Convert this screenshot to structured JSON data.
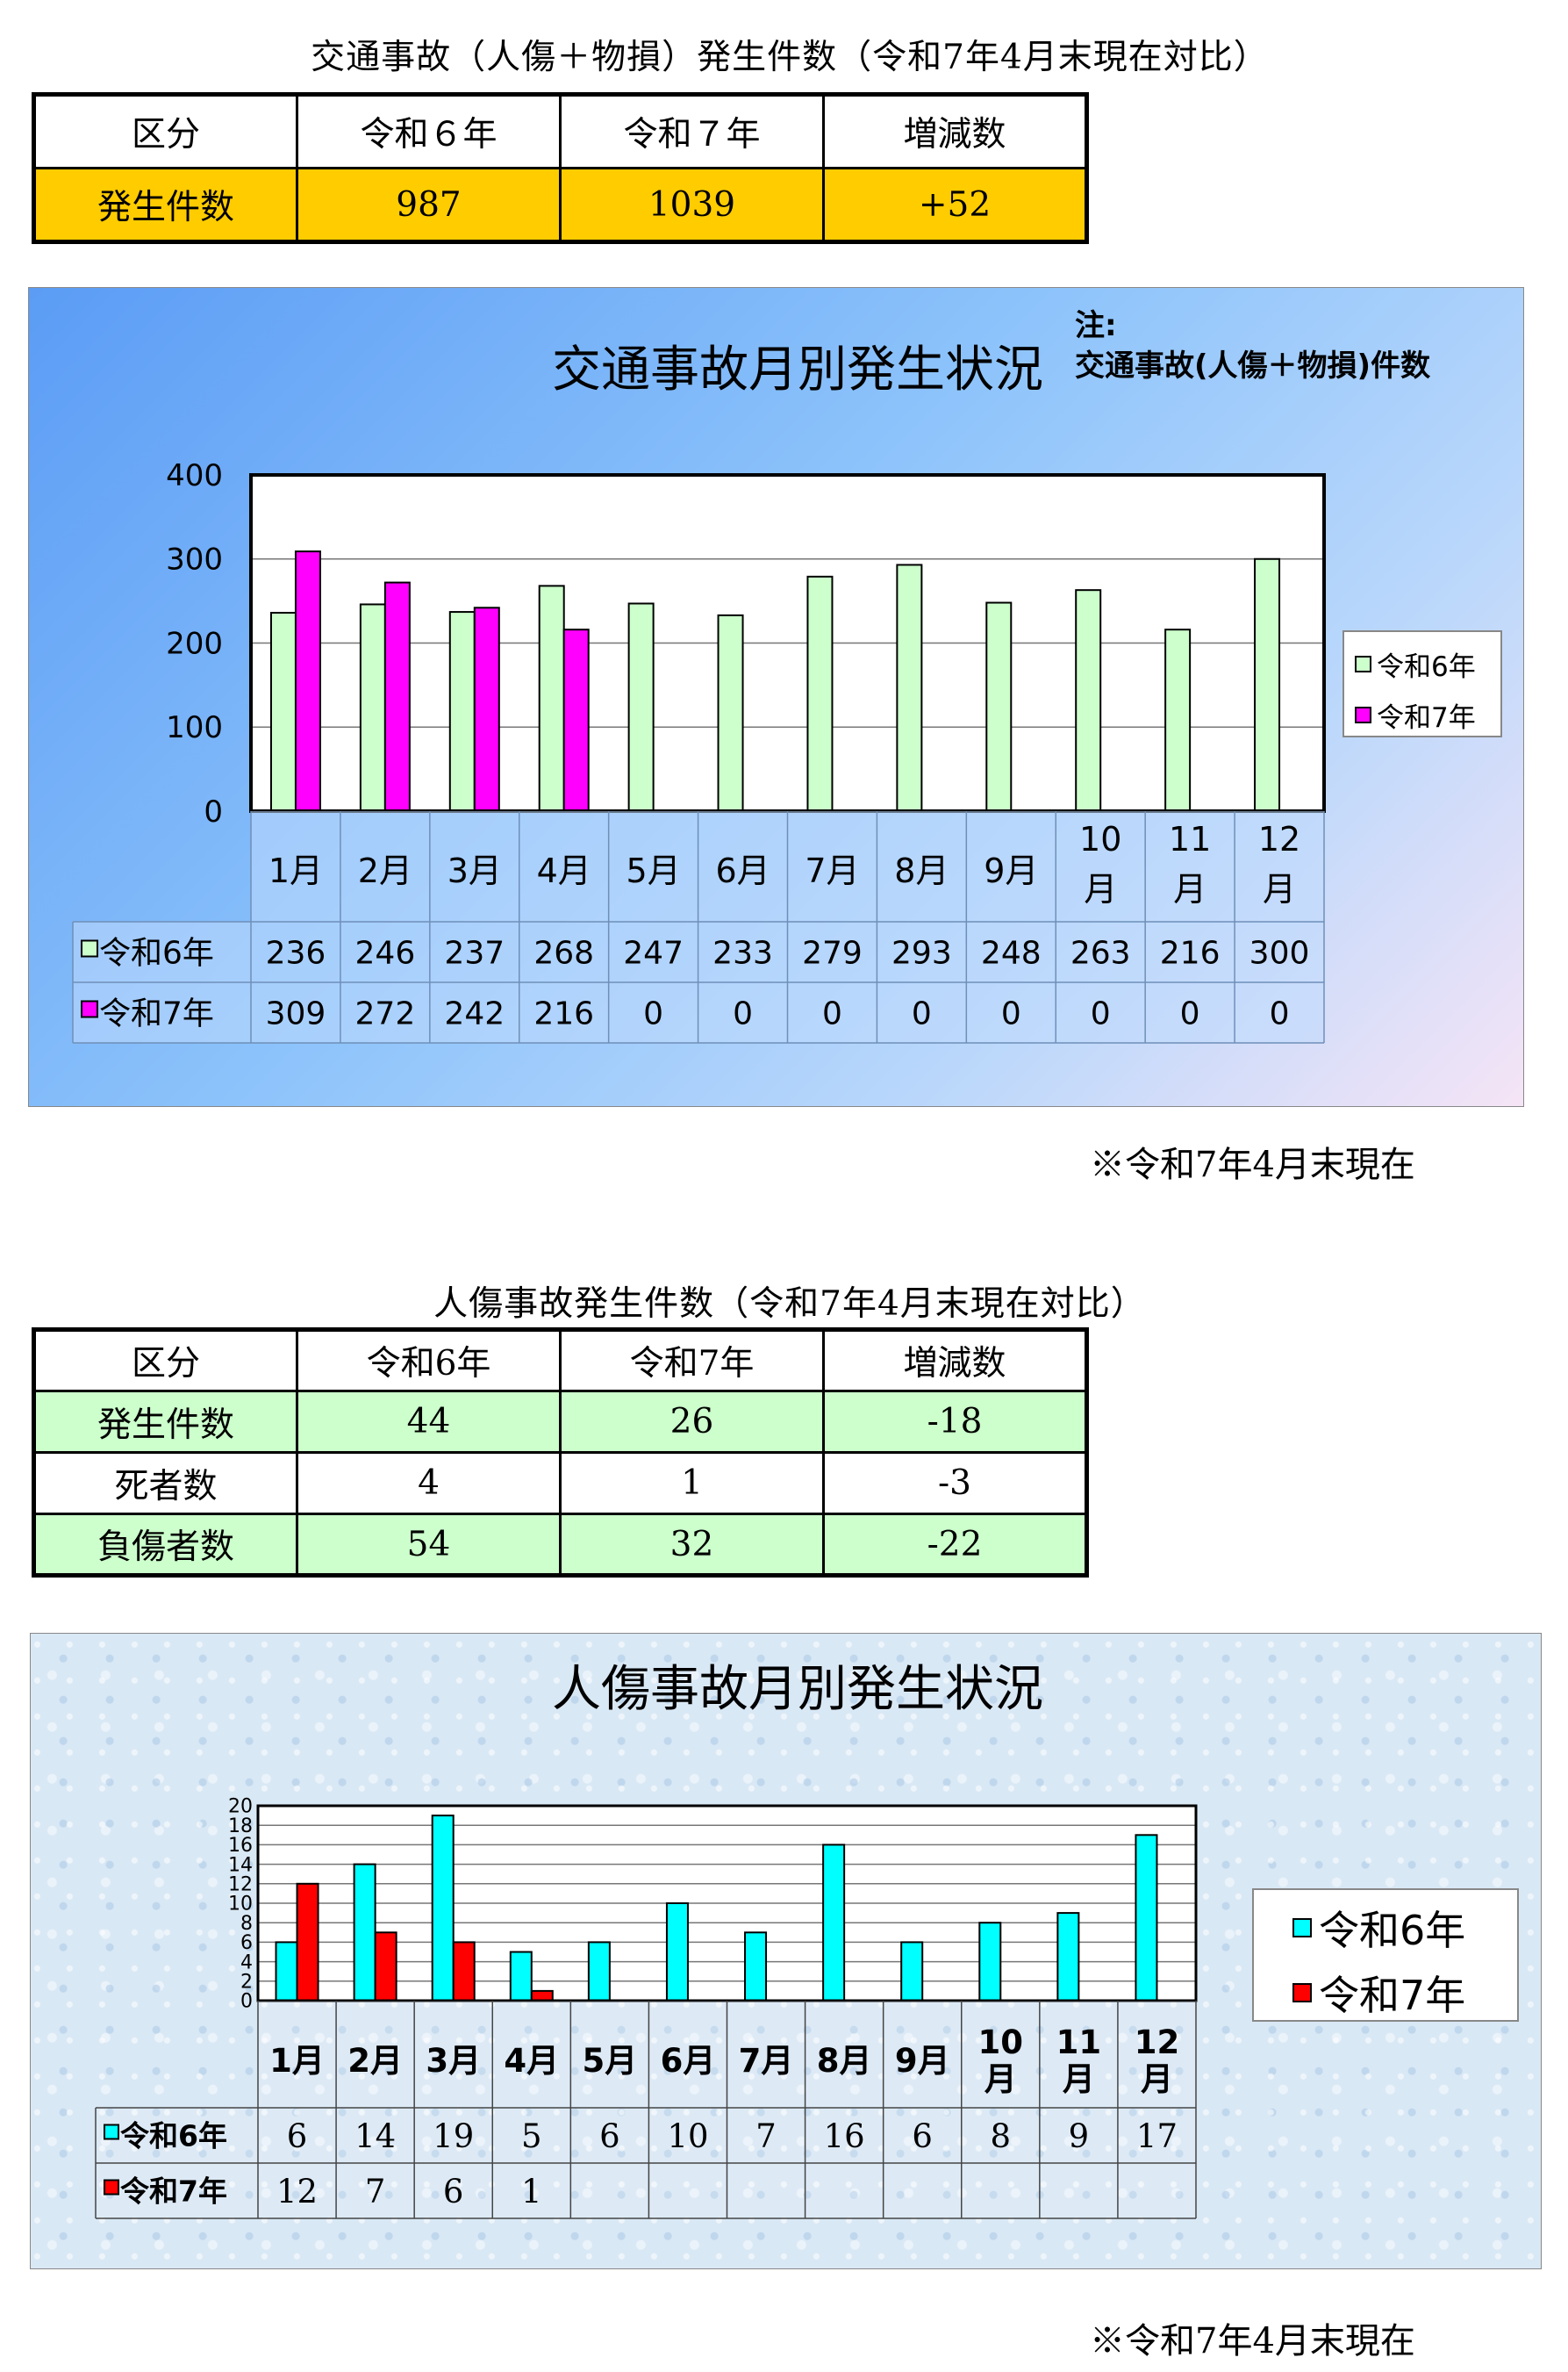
{
  "section1": {
    "caption": "交通事故（人傷＋物損）発生件数（令和7年4月末現在対比）",
    "table": {
      "headers": [
        "区分",
        "令和６年",
        "令和７年",
        "増減数"
      ],
      "row": [
        "発生件数",
        "987",
        "1039",
        "+52"
      ]
    }
  },
  "chart1_panel": {
    "title": "交通事故月別発生状況",
    "note_line1": "注:",
    "note_line2": "交通事故(人傷＋物損)件数",
    "footnote": "※令和7年4月末現在"
  },
  "section2": {
    "caption": "人傷事故発生件数（令和7年4月末現在対比）",
    "table": {
      "headers": [
        "区分",
        "令和6年",
        "令和7年",
        "増減数"
      ],
      "rows": [
        [
          "発生件数",
          "44",
          "26",
          "-18"
        ],
        [
          "死者数",
          "4",
          "1",
          "-3"
        ],
        [
          "負傷者数",
          "54",
          "32",
          "-22"
        ]
      ]
    }
  },
  "chart2_panel": {
    "title": "人傷事故月別発生状況",
    "footnote": "※令和7年4月末現在"
  },
  "chart_data": [
    {
      "type": "bar",
      "title": "交通事故月別発生状況",
      "categories": [
        "1月",
        "2月",
        "3月",
        "4月",
        "5月",
        "6月",
        "7月",
        "8月",
        "9月",
        "10月",
        "11月",
        "12月"
      ],
      "series": [
        {
          "name": "令和6年",
          "values": [
            236,
            246,
            237,
            268,
            247,
            233,
            279,
            293,
            248,
            263,
            216,
            300
          ],
          "labels": [
            "236",
            "246",
            "237",
            "268",
            "247",
            "233",
            "279",
            "293",
            "248",
            "263",
            "216",
            "300"
          ],
          "color": "#ccffcc"
        },
        {
          "name": "令和7年",
          "values": [
            309,
            272,
            242,
            216,
            0,
            0,
            0,
            0,
            0,
            0,
            0,
            0
          ],
          "labels": [
            "309",
            "272",
            "242",
            "216",
            "0",
            "0",
            "0",
            "0",
            "0",
            "0",
            "0",
            "0"
          ],
          "color": "#ff00ff"
        }
      ],
      "ylim": [
        0,
        400
      ],
      "yticks": [
        "0",
        "100",
        "200",
        "300",
        "400"
      ],
      "grid": true,
      "legend": "right",
      "data_table": true
    },
    {
      "type": "bar",
      "title": "人傷事故月別発生状況",
      "categories": [
        "1月",
        "2月",
        "3月",
        "4月",
        "5月",
        "6月",
        "7月",
        "8月",
        "9月",
        "10月",
        "11月",
        "12月"
      ],
      "series": [
        {
          "name": "令和6年",
          "values": [
            6,
            14,
            19,
            5,
            6,
            10,
            7,
            16,
            6,
            8,
            9,
            17
          ],
          "labels": [
            "6",
            "14",
            "19",
            "5",
            "6",
            "10",
            "7",
            "16",
            "6",
            "8",
            "9",
            "17"
          ],
          "color": "#00ffff"
        },
        {
          "name": "令和7年",
          "values": [
            12,
            7,
            6,
            1,
            null,
            null,
            null,
            null,
            null,
            null,
            null,
            null
          ],
          "labels": [
            "12",
            "7",
            "6",
            "1",
            "",
            "",
            "",
            "",
            "",
            "",
            "",
            ""
          ],
          "color": "#ff0000"
        }
      ],
      "ylim": [
        0,
        20
      ],
      "yticks": [
        "0",
        "2",
        "4",
        "6",
        "8",
        "10",
        "12",
        "14",
        "16",
        "18",
        "20"
      ],
      "grid": true,
      "legend": "right",
      "data_table": true
    }
  ]
}
